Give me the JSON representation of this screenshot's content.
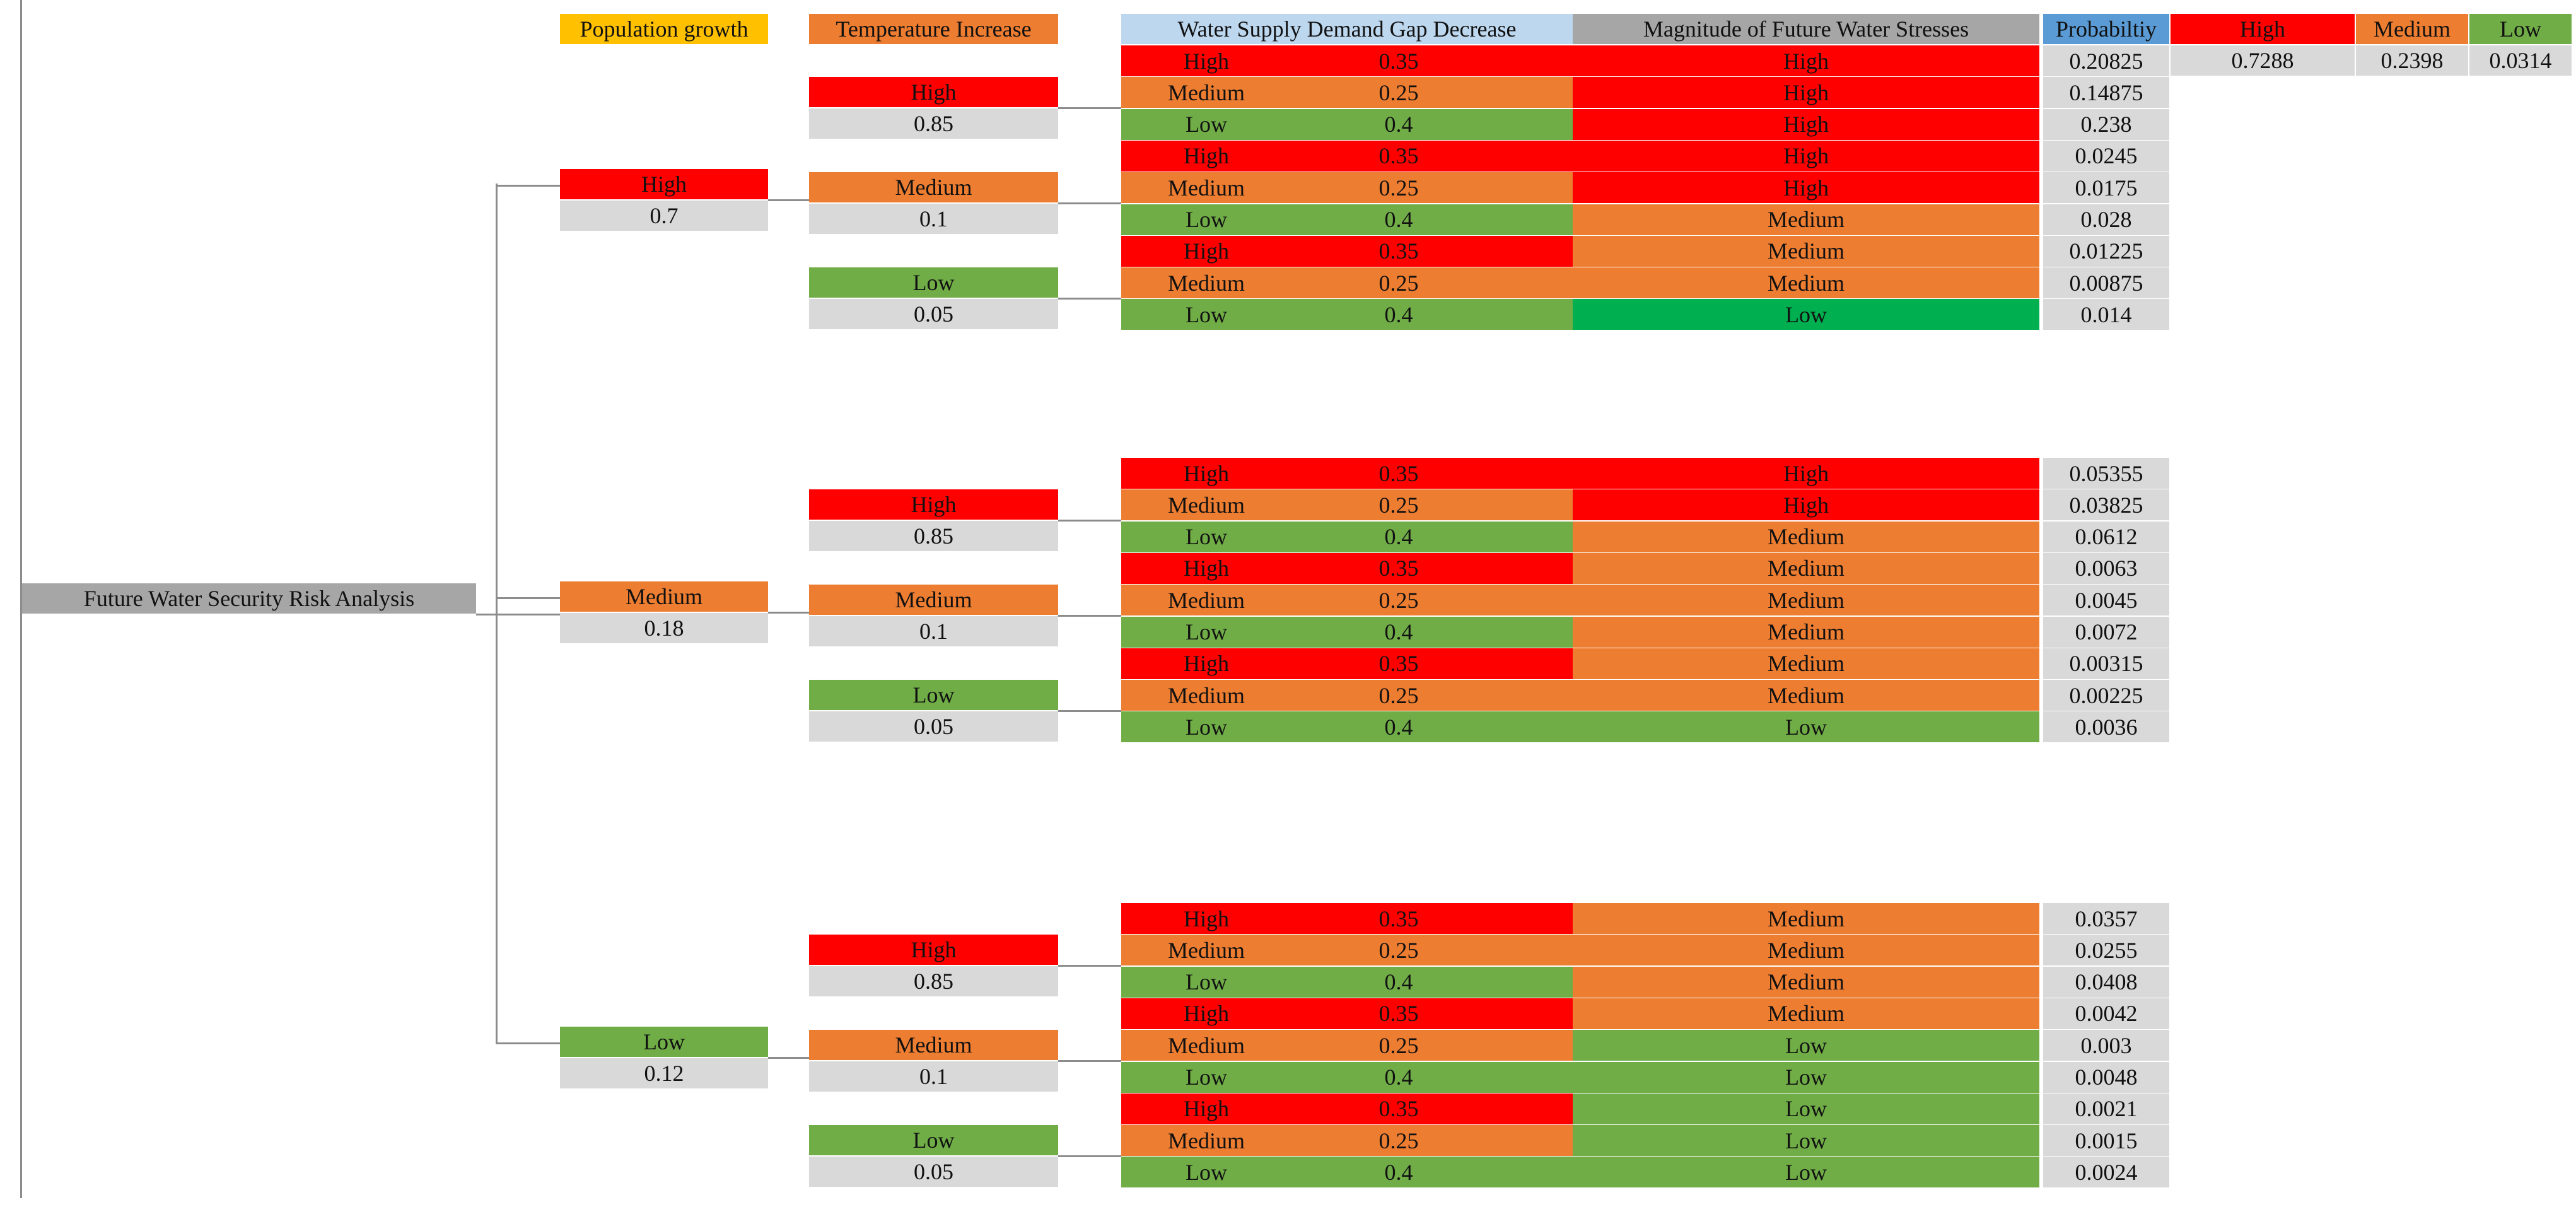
{
  "root": {
    "label": "Future Water Security Risk Analysis"
  },
  "headers": {
    "population": "Population growth",
    "temperature": "Temperature Increase",
    "gap": "Water Supply Demand Gap Decrease",
    "magnitude": "Magnitude of Future Water Stresses",
    "probability": "Probabiltiy"
  },
  "summary": {
    "high_label": "High",
    "medium_label": "Medium",
    "low_label": "Low",
    "high_value": "0.7288",
    "medium_value": "0.2398",
    "low_value": "0.0314"
  },
  "colors": {
    "high": "#ff0000",
    "medium": "#ed7d31",
    "low": "#70ad47",
    "low_bright": "#00b050",
    "probability_cell": "#d9d9d9",
    "header_gap": "#bdd7ee",
    "header_probability": "#5b9bd5",
    "header_population": "#ffc000",
    "header_magnitude": "#a6a6a6",
    "root": "#a6a6a6"
  },
  "population": [
    {
      "label": "High",
      "prob": "0.7"
    },
    {
      "label": "Medium",
      "prob": "0.18"
    },
    {
      "label": "Low",
      "prob": "0.12"
    }
  ],
  "temperature": [
    {
      "label": "High",
      "prob": "0.85"
    },
    {
      "label": "Medium",
      "prob": "0.1"
    },
    {
      "label": "Low",
      "prob": "0.05"
    }
  ],
  "gap": [
    {
      "label": "High",
      "prob": "0.35"
    },
    {
      "label": "Medium",
      "prob": "0.25"
    },
    {
      "label": "Low",
      "prob": "0.4"
    }
  ],
  "blocks": [
    {
      "magnitude": [
        "High",
        "High",
        "High",
        "High",
        "High",
        "Medium",
        "Medium",
        "Medium",
        "Low"
      ],
      "probability": [
        "0.20825",
        "0.14875",
        "0.238",
        "0.0245",
        "0.0175",
        "0.028",
        "0.01225",
        "0.00875",
        "0.014"
      ]
    },
    {
      "magnitude": [
        "High",
        "High",
        "Medium",
        "Medium",
        "Medium",
        "Medium",
        "Medium",
        "Medium",
        "Low"
      ],
      "probability": [
        "0.05355",
        "0.03825",
        "0.0612",
        "0.0063",
        "0.0045",
        "0.0072",
        "0.00315",
        "0.00225",
        "0.0036"
      ]
    },
    {
      "magnitude": [
        "Medium",
        "Medium",
        "Medium",
        "Medium",
        "Low",
        "Low",
        "Low",
        "Low",
        "Low"
      ],
      "probability": [
        "0.0357",
        "0.0255",
        "0.0408",
        "0.0042",
        "0.003",
        "0.0048",
        "0.0021",
        "0.0015",
        "0.0024"
      ]
    }
  ]
}
